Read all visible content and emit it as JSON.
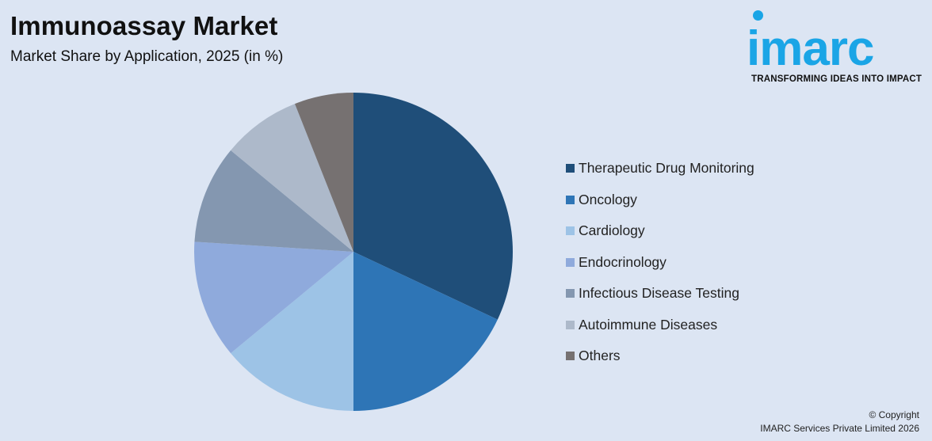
{
  "header": {
    "title": "Immunoassay Market",
    "subtitle": "Market Share by Application, 2025 (in %)"
  },
  "logo": {
    "wordmark": "imarc",
    "tagline": "TRANSFORMING IDEAS INTO IMPACT",
    "color": "#1aa5e6"
  },
  "chart_data": {
    "type": "pie",
    "title": "Immunoassay Market",
    "subtitle": "Market Share by Application, 2025 (in %)",
    "legend_position": "right",
    "start_angle": "12 o'clock",
    "direction": "clockwise",
    "categories": [
      "Therapeutic Drug Monitoring",
      "Oncology",
      "Cardiology",
      "Endocrinology",
      "Infectious Disease Testing",
      "Autoimmune Diseases",
      "Others"
    ],
    "values": [
      32,
      18,
      14,
      12,
      10,
      8,
      6
    ],
    "colors": [
      "#1f4e79",
      "#2e75b6",
      "#9dc3e6",
      "#8faadc",
      "#8497b0",
      "#adb9ca",
      "#767171"
    ]
  },
  "footer": {
    "copyright_line1": "© Copyright",
    "copyright_line2": "IMARC Services Private Limited 2026"
  }
}
